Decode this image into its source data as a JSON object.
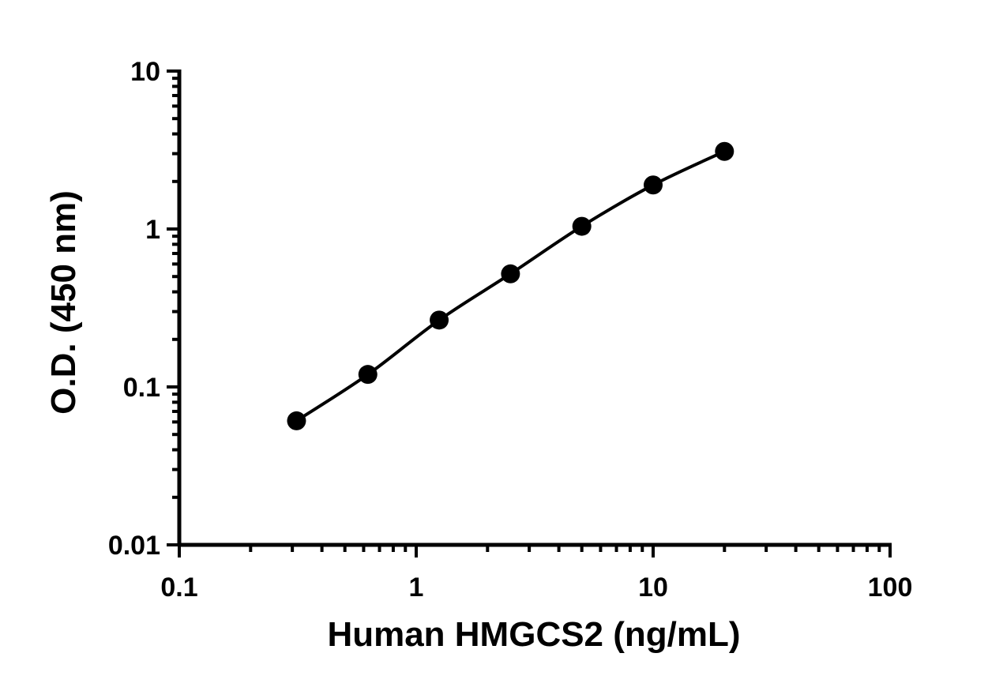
{
  "chart_data": {
    "type": "scatter",
    "title": "",
    "xlabel": "Human HMGCS2 (ng/mL)",
    "ylabel": "O.D. (450 nm)",
    "x_scale": "log",
    "y_scale": "log",
    "xlim": [
      0.1,
      100
    ],
    "ylim": [
      0.01,
      10
    ],
    "x_tick_labels": [
      "0.1",
      "1",
      "10",
      "100"
    ],
    "y_tick_labels": [
      "0.01",
      "0.1",
      "1",
      "10"
    ],
    "grid": false,
    "legend": "none",
    "series": [
      {
        "x": [
          0.3125,
          0.625,
          1.25,
          2.5,
          5,
          10,
          20
        ],
        "y": [
          0.061,
          0.12,
          0.265,
          0.52,
          1.04,
          1.9,
          3.1
        ],
        "color": "#000000",
        "marker": "circle",
        "fitted_curve": true
      }
    ]
  }
}
